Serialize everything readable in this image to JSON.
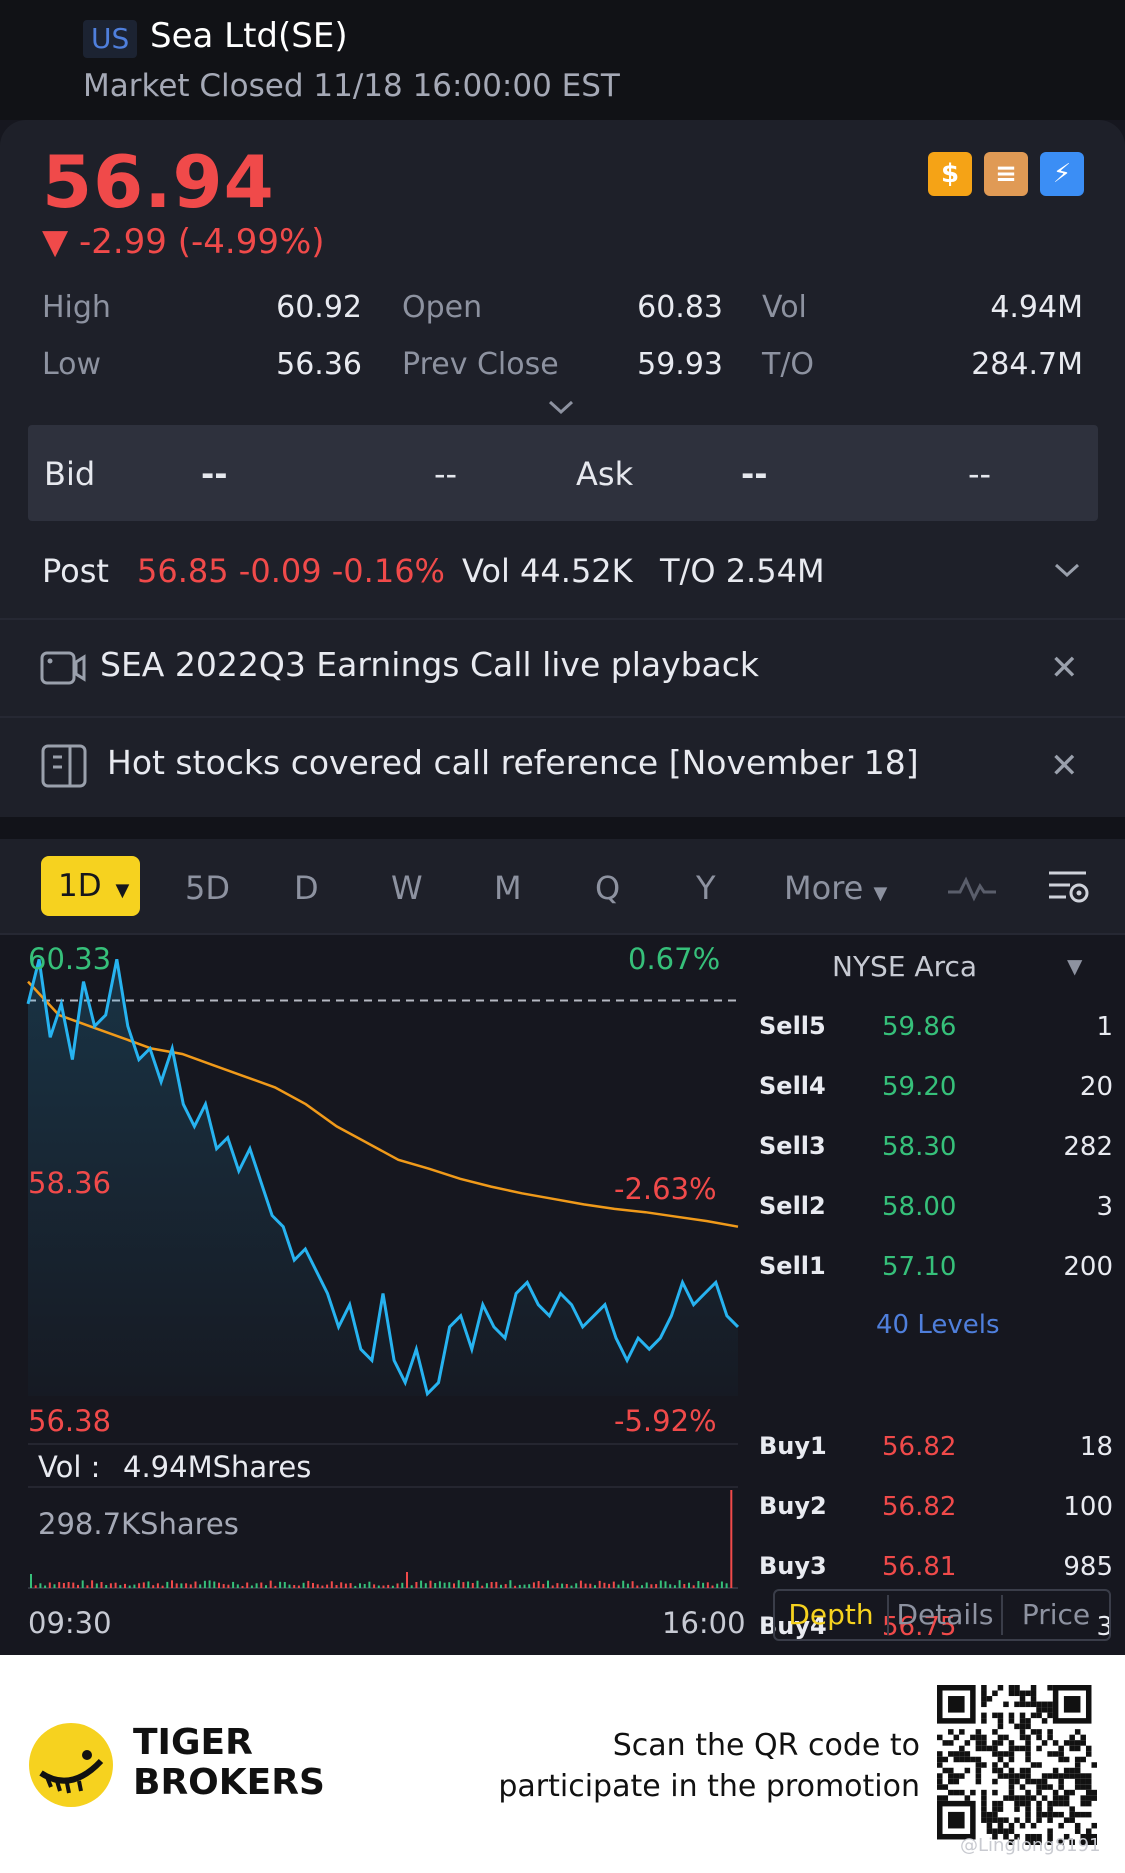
{
  "header": {
    "market": "US",
    "title": "Sea Ltd(SE)",
    "status": "Market Closed 11/18 16:00:00 EST"
  },
  "quote": {
    "price": "56.94",
    "change": "▼ -2.99 (-4.99%)",
    "stats": {
      "high_label": "High",
      "high": "60.92",
      "open_label": "Open",
      "open": "60.83",
      "vol_label": "Vol",
      "vol": "4.94M",
      "low_label": "Low",
      "low": "56.36",
      "prev_label": "Prev Close",
      "prev": "59.93",
      "to_label": "T/O",
      "to": "284.7M"
    }
  },
  "bid_ask": {
    "bid_label": "Bid",
    "bid_price": "--",
    "bid_size": "--",
    "ask_label": "Ask",
    "ask_price": "--",
    "ask_size": "--"
  },
  "post": {
    "label": "Post",
    "price_change": "56.85 -0.09 -0.16%",
    "vol": "Vol 44.52K",
    "to": "T/O 2.54M"
  },
  "notices": [
    {
      "text": "SEA 2022Q3 Earnings Call live playback",
      "icon": "video-icon"
    },
    {
      "text": "Hot stocks covered call  reference [November 18]",
      "icon": "document-icon"
    }
  ],
  "periods": {
    "active": "1D",
    "items": [
      "5D",
      "D",
      "W",
      "M",
      "Q",
      "Y"
    ],
    "more": "More"
  },
  "chart": {
    "y_top": "60.33",
    "y_mid": "58.36",
    "y_bot": "56.38",
    "pct_top": "0.67%",
    "pct_mid": "-2.63%",
    "pct_bot": "-5.92%",
    "vol_label": "Vol :",
    "vol_value": "4.94MShares",
    "vol_max": "298.7KShares",
    "time_start": "09:30",
    "time_end": "16:00"
  },
  "chart_data": {
    "type": "line",
    "title": "",
    "xlabel": "",
    "ylabel": "",
    "x_range": [
      "09:30",
      "16:00"
    ],
    "ylim": [
      56.38,
      60.33
    ],
    "prev_close": 59.93,
    "series": [
      {
        "values": [
          59.9,
          60.3,
          59.6,
          59.9,
          59.4,
          60.1,
          59.7,
          59.8,
          60.3,
          59.7,
          59.4,
          59.5,
          59.2,
          59.5,
          59.0,
          58.8,
          59.0,
          58.6,
          58.7,
          58.4,
          58.6,
          58.3,
          58.0,
          57.9,
          57.6,
          57.7,
          57.5,
          57.3,
          57.0,
          57.2,
          56.8,
          56.7,
          57.3,
          56.7,
          56.5,
          56.8,
          56.4,
          56.5,
          57.0,
          57.1,
          56.8,
          57.2,
          57.0,
          56.9,
          57.3,
          57.4,
          57.2,
          57.1,
          57.3,
          57.2,
          57.0,
          57.1,
          57.2,
          56.9,
          56.7,
          56.9,
          56.8,
          56.9,
          57.1,
          57.4,
          57.2,
          57.3,
          57.4,
          57.1,
          57.0
        ]
      },
      {
        "values": [
          60.1,
          59.8,
          59.7,
          59.6,
          59.5,
          59.45,
          59.35,
          59.25,
          59.15,
          59.0,
          58.8,
          58.65,
          58.5,
          58.42,
          58.33,
          58.26,
          58.2,
          58.15,
          58.1,
          58.06,
          58.03,
          57.99,
          57.95,
          57.9
        ]
      }
    ]
  },
  "depth": {
    "exchange": "NYSE Arca",
    "levels_link": "40 Levels",
    "sells": [
      {
        "label": "Sell5",
        "price": "59.86",
        "qty": "1"
      },
      {
        "label": "Sell4",
        "price": "59.20",
        "qty": "20"
      },
      {
        "label": "Sell3",
        "price": "58.30",
        "qty": "282"
      },
      {
        "label": "Sell2",
        "price": "58.00",
        "qty": "3"
      },
      {
        "label": "Sell1",
        "price": "57.10",
        "qty": "200"
      }
    ],
    "buys": [
      {
        "label": "Buy1",
        "price": "56.82",
        "qty": "18"
      },
      {
        "label": "Buy2",
        "price": "56.82",
        "qty": "100"
      },
      {
        "label": "Buy3",
        "price": "56.81",
        "qty": "985"
      },
      {
        "label": "Buy4",
        "price": "56.75",
        "qty": "3"
      }
    ],
    "tabs": [
      "Depth",
      "Details",
      "Price"
    ]
  },
  "promo": {
    "brand_line1": "TIGER",
    "brand_line2": "BROKERS",
    "text_line1": "Scan the QR code to",
    "text_line2": "participate in the promotion",
    "watermark": "@Linglong8191"
  },
  "colors": {
    "up": "#36c07a",
    "down": "#f04a4a",
    "line": "#27b3f0",
    "avg": "#f09a1a",
    "accent": "#f6d21f",
    "link": "#4f7fdc"
  }
}
